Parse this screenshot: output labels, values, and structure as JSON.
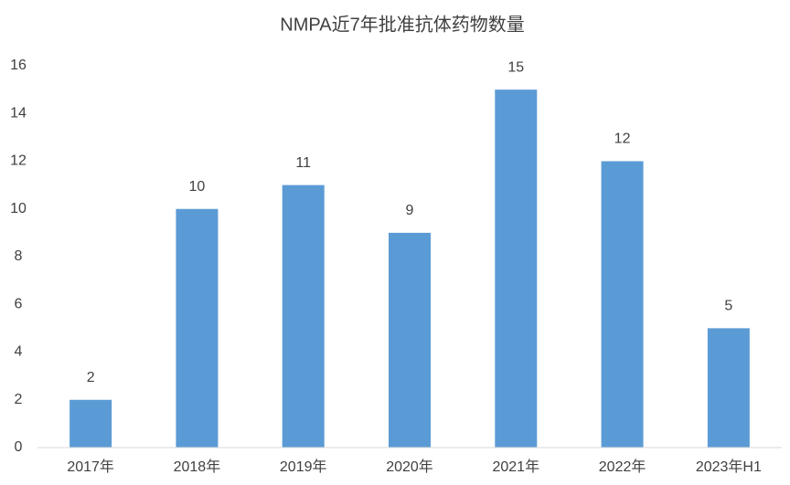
{
  "chart_data": {
    "type": "bar",
    "title": "NMPA近7年批准抗体药物数量",
    "categories": [
      "2017年",
      "2018年",
      "2019年",
      "2020年",
      "2021年",
      "2022年",
      "2023年H1"
    ],
    "values": [
      2,
      10,
      11,
      9,
      15,
      12,
      5
    ],
    "color": "#5b9bd5",
    "ylim": [
      0,
      16
    ],
    "yticks": [
      0,
      2,
      4,
      6,
      8,
      10,
      12,
      14,
      16
    ],
    "grid": false,
    "data_labels": true
  }
}
